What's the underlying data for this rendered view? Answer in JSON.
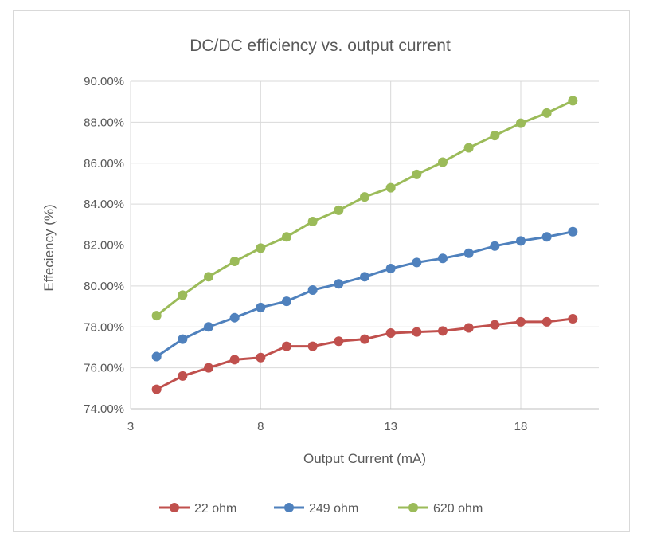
{
  "chart_data": {
    "type": "line",
    "title": "DC/DC efficiency vs. output current",
    "xlabel": "Output Current (mA)",
    "ylabel": "Effeciency (%)",
    "xlim": [
      3,
      21
    ],
    "ylim": [
      74,
      90
    ],
    "x_ticks": [
      3,
      8,
      13,
      18
    ],
    "x_tick_labels": [
      "3",
      "8",
      "13",
      "18"
    ],
    "y_ticks": [
      74,
      76,
      78,
      80,
      82,
      84,
      86,
      88,
      90
    ],
    "y_tick_labels": [
      "74.00%",
      "76.00%",
      "78.00%",
      "80.00%",
      "82.00%",
      "84.00%",
      "86.00%",
      "88.00%",
      "90.00%"
    ],
    "grid": true,
    "legend_position": "bottom",
    "x": [
      4,
      5,
      6,
      7,
      8,
      9,
      10,
      11,
      12,
      13,
      14,
      15,
      16,
      17,
      18,
      19,
      20
    ],
    "series": [
      {
        "name": "22 ohm",
        "color": "#c0504d",
        "values": [
          74.95,
          75.6,
          76.0,
          76.4,
          76.5,
          77.05,
          77.05,
          77.3,
          77.4,
          77.7,
          77.75,
          77.8,
          77.95,
          78.1,
          78.25,
          78.25,
          78.4
        ]
      },
      {
        "name": "249 ohm",
        "color": "#4f81bd",
        "values": [
          76.55,
          77.4,
          78.0,
          78.45,
          78.95,
          79.25,
          79.8,
          80.1,
          80.45,
          80.85,
          81.15,
          81.35,
          81.6,
          81.95,
          82.2,
          82.4,
          82.65
        ]
      },
      {
        "name": "620 ohm",
        "color": "#9bbb59",
        "values": [
          78.55,
          79.55,
          80.45,
          81.2,
          81.85,
          82.4,
          83.15,
          83.7,
          84.35,
          84.8,
          85.45,
          86.05,
          86.75,
          87.35,
          87.95,
          88.45,
          89.05
        ]
      }
    ]
  }
}
